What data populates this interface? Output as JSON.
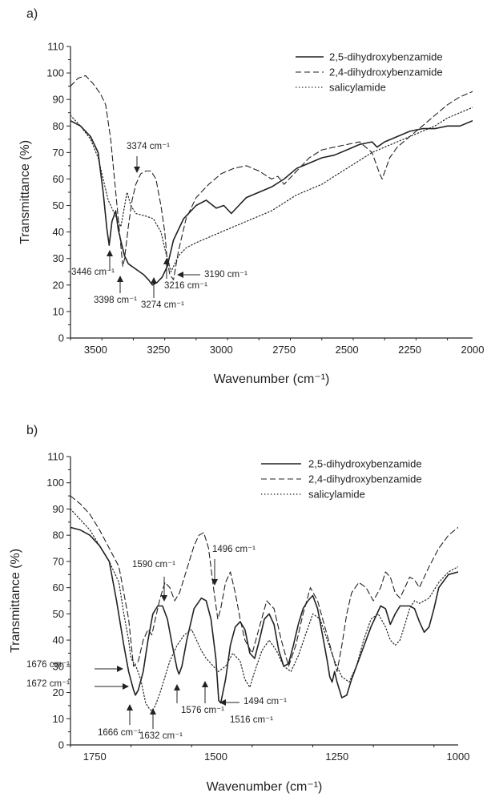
{
  "chart_data": [
    {
      "type": "line",
      "panel_label": "a)",
      "xlabel": "Wavenumber (cm⁻¹)",
      "ylabel": "Transmittance (%)",
      "xlim": [
        3600,
        2000
      ],
      "ylim": [
        0,
        110
      ],
      "x_ticks": [
        3500,
        3250,
        3000,
        2750,
        2500,
        2250,
        2000
      ],
      "y_ticks": [
        0,
        10,
        20,
        30,
        40,
        50,
        60,
        70,
        80,
        90,
        100,
        110
      ],
      "grid": false,
      "legend_position": "top-right",
      "series": [
        {
          "name": "2,5-dihydroxybenzamide",
          "dash": "solid",
          "x": [
            3600,
            3560,
            3520,
            3490,
            3470,
            3455,
            3446,
            3435,
            3420,
            3410,
            3398,
            3385,
            3370,
            3340,
            3310,
            3290,
            3274,
            3255,
            3235,
            3215,
            3190,
            3150,
            3100,
            3060,
            3020,
            2990,
            2960,
            2930,
            2900,
            2850,
            2800,
            2750,
            2700,
            2650,
            2600,
            2550,
            2500,
            2450,
            2400,
            2380,
            2350,
            2300,
            2250,
            2200,
            2150,
            2100,
            2050,
            2000
          ],
          "y": [
            82,
            80,
            76,
            70,
            55,
            41,
            35,
            44,
            48,
            41,
            36,
            31,
            28,
            26,
            24,
            22,
            20,
            21,
            23,
            27,
            37,
            45,
            50,
            52,
            49,
            50,
            47,
            50,
            53,
            55,
            57,
            60,
            64,
            66,
            68,
            69,
            71,
            73,
            74,
            72,
            74,
            76,
            78,
            79,
            79,
            80,
            80,
            82
          ]
        },
        {
          "name": "2,4-dihydroxybenzamide",
          "dash": "dashed",
          "x": [
            3600,
            3570,
            3540,
            3510,
            3480,
            3460,
            3440,
            3420,
            3400,
            3392,
            3385,
            3370,
            3355,
            3340,
            3320,
            3300,
            3280,
            3260,
            3240,
            3225,
            3216,
            3205,
            3190,
            3170,
            3140,
            3100,
            3050,
            3000,
            2950,
            2900,
            2850,
            2800,
            2775,
            2750,
            2700,
            2650,
            2600,
            2550,
            2500,
            2450,
            2400,
            2370,
            2360,
            2345,
            2330,
            2300,
            2250,
            2200,
            2150,
            2100,
            2050,
            2000
          ],
          "y": [
            95,
            98,
            99,
            96,
            92,
            88,
            75,
            55,
            35,
            27,
            30,
            42,
            52,
            58,
            62,
            63,
            63,
            60,
            50,
            40,
            30,
            24,
            22,
            33,
            45,
            53,
            58,
            62,
            64,
            65,
            63,
            60,
            61,
            58,
            63,
            68,
            71,
            72,
            73,
            74,
            70,
            62,
            60,
            64,
            68,
            72,
            76,
            80,
            84,
            88,
            91,
            93
          ]
        },
        {
          "name": "salicylamide",
          "dash": "dotted",
          "x": [
            3600,
            3560,
            3520,
            3490,
            3470,
            3450,
            3430,
            3410,
            3400,
            3390,
            3375,
            3360,
            3340,
            3300,
            3270,
            3240,
            3220,
            3200,
            3190,
            3170,
            3140,
            3100,
            3050,
            3000,
            2950,
            2900,
            2850,
            2800,
            2750,
            2700,
            2650,
            2600,
            2550,
            2500,
            2450,
            2400,
            2350,
            2300,
            2250,
            2200,
            2150,
            2100,
            2050,
            2000
          ],
          "y": [
            84,
            80,
            75,
            68,
            60,
            52,
            48,
            44,
            42,
            47,
            55,
            50,
            47,
            46,
            45,
            40,
            32,
            25,
            27,
            31,
            34,
            36,
            38,
            40,
            42,
            44,
            46,
            48,
            51,
            54,
            56,
            58,
            61,
            64,
            67,
            70,
            72,
            74,
            76,
            78,
            80,
            83,
            85,
            87
          ]
        }
      ],
      "annotations": [
        "3374 cm⁻¹",
        "3446 cm⁻¹",
        "3398 cm⁻¹",
        "3274 cm⁻¹",
        "3216 cm⁻¹",
        "3190 cm⁻¹"
      ]
    },
    {
      "type": "line",
      "panel_label": "b)",
      "xlabel": "Wavenumber (cm⁻¹)",
      "ylabel": "Transmittance (%)",
      "xlim": [
        1800,
        1000
      ],
      "ylim": [
        0,
        110
      ],
      "x_ticks": [
        1750,
        1500,
        1250,
        1000
      ],
      "y_ticks": [
        0,
        10,
        20,
        30,
        40,
        50,
        60,
        70,
        80,
        90,
        100,
        110
      ],
      "grid": false,
      "legend_position": "top-right",
      "series": [
        {
          "name": "2,5-dihydroxybenzamide",
          "dash": "solid",
          "x": [
            1800,
            1780,
            1760,
            1740,
            1720,
            1705,
            1690,
            1680,
            1670,
            1666,
            1660,
            1650,
            1640,
            1630,
            1620,
            1610,
            1600,
            1590,
            1580,
            1576,
            1570,
            1560,
            1545,
            1530,
            1520,
            1510,
            1500,
            1494,
            1490,
            1480,
            1470,
            1460,
            1450,
            1440,
            1430,
            1420,
            1410,
            1400,
            1390,
            1380,
            1370,
            1360,
            1350,
            1340,
            1330,
            1320,
            1310,
            1300,
            1290,
            1280,
            1270,
            1265,
            1260,
            1255,
            1250,
            1240,
            1230,
            1220,
            1200,
            1180,
            1160,
            1150,
            1140,
            1130,
            1120,
            1100,
            1090,
            1080,
            1070,
            1060,
            1050,
            1040,
            1020,
            1000
          ],
          "y": [
            83,
            82,
            80,
            76,
            70,
            55,
            38,
            28,
            21,
            19,
            21,
            28,
            40,
            50,
            53,
            53,
            48,
            38,
            29,
            27,
            30,
            40,
            52,
            56,
            55,
            48,
            33,
            17,
            16,
            25,
            38,
            45,
            47,
            44,
            35,
            33,
            40,
            48,
            50,
            46,
            36,
            30,
            31,
            38,
            46,
            52,
            55,
            57,
            52,
            42,
            32,
            26,
            24,
            28,
            24,
            18,
            19,
            25,
            35,
            45,
            53,
            52,
            46,
            50,
            53,
            53,
            52,
            47,
            43,
            45,
            52,
            60,
            65,
            66
          ]
        },
        {
          "name": "2,4-dihydroxybenzamide",
          "dash": "dashed",
          "x": [
            1800,
            1780,
            1760,
            1740,
            1720,
            1700,
            1690,
            1680,
            1670,
            1660,
            1650,
            1640,
            1632,
            1625,
            1615,
            1605,
            1595,
            1585,
            1575,
            1565,
            1555,
            1545,
            1535,
            1525,
            1515,
            1505,
            1496,
            1490,
            1480,
            1470,
            1460,
            1450,
            1440,
            1425,
            1410,
            1395,
            1380,
            1365,
            1350,
            1335,
            1320,
            1305,
            1290,
            1275,
            1260,
            1250,
            1240,
            1230,
            1220,
            1205,
            1190,
            1175,
            1160,
            1150,
            1140,
            1130,
            1120,
            1110,
            1100,
            1090,
            1080,
            1060,
            1040,
            1020,
            1000
          ],
          "y": [
            95,
            92,
            88,
            82,
            75,
            68,
            58,
            48,
            30,
            32,
            40,
            44,
            42,
            48,
            56,
            62,
            60,
            55,
            58,
            64,
            70,
            76,
            80,
            81,
            75,
            60,
            48,
            52,
            62,
            66,
            58,
            48,
            40,
            35,
            45,
            55,
            52,
            40,
            30,
            38,
            50,
            60,
            55,
            45,
            35,
            28,
            38,
            50,
            58,
            62,
            60,
            55,
            60,
            66,
            64,
            58,
            56,
            60,
            64,
            63,
            60,
            68,
            75,
            80,
            83
          ]
        },
        {
          "name": "salicylamide",
          "dash": "dotted",
          "x": [
            1800,
            1780,
            1760,
            1740,
            1720,
            1700,
            1690,
            1680,
            1676,
            1672,
            1665,
            1655,
            1645,
            1638,
            1632,
            1625,
            1615,
            1605,
            1595,
            1580,
            1565,
            1550,
            1540,
            1530,
            1520,
            1505,
            1495,
            1480,
            1465,
            1450,
            1440,
            1430,
            1420,
            1405,
            1390,
            1375,
            1360,
            1345,
            1330,
            1315,
            1300,
            1285,
            1270,
            1255,
            1240,
            1225,
            1210,
            1195,
            1180,
            1165,
            1150,
            1140,
            1130,
            1120,
            1110,
            1100,
            1090,
            1080,
            1060,
            1040,
            1020,
            1000
          ],
          "y": [
            90,
            86,
            82,
            76,
            70,
            62,
            50,
            40,
            34,
            32,
            30,
            25,
            16,
            14,
            13,
            15,
            20,
            26,
            32,
            38,
            42,
            44,
            40,
            36,
            33,
            30,
            28,
            30,
            35,
            32,
            25,
            22,
            28,
            36,
            40,
            36,
            30,
            28,
            34,
            42,
            50,
            48,
            40,
            32,
            26,
            24,
            30,
            40,
            48,
            50,
            45,
            40,
            38,
            40,
            46,
            52,
            55,
            54,
            56,
            62,
            66,
            68
          ]
        }
      ],
      "annotations": [
        "1590 cm⁻¹",
        "1496 cm⁻¹",
        "1676 cm⁻¹",
        "1672 cm⁻¹",
        "1666 cm⁻¹",
        "1632 cm⁻¹",
        "1576 cm⁻¹",
        "1516 cm⁻¹",
        "1494 cm⁻¹"
      ]
    }
  ]
}
